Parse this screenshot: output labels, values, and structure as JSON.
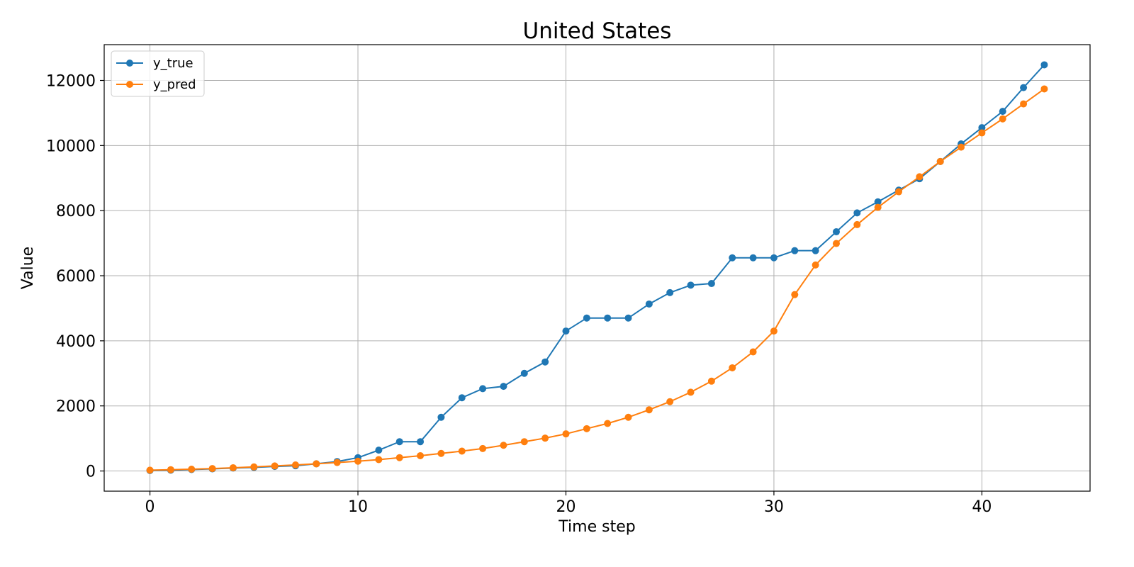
{
  "chart_data": {
    "type": "line",
    "title": "United States",
    "xlabel": "Time step",
    "ylabel": "Value",
    "xlim": [
      -2.2,
      45.2
    ],
    "ylim": [
      -620,
      13100
    ],
    "xticks": [
      0,
      10,
      20,
      30,
      40
    ],
    "yticks": [
      0,
      2000,
      4000,
      6000,
      8000,
      10000,
      12000
    ],
    "grid": true,
    "legend_position": "top-left",
    "x": [
      0,
      1,
      2,
      3,
      4,
      5,
      6,
      7,
      8,
      9,
      10,
      11,
      12,
      13,
      14,
      15,
      16,
      17,
      18,
      19,
      20,
      21,
      22,
      23,
      24,
      25,
      26,
      27,
      28,
      29,
      30,
      31,
      32,
      33,
      34,
      35,
      36,
      37,
      38,
      39,
      40,
      41,
      42,
      43
    ],
    "series": [
      {
        "name": "y_true",
        "color": "#1f77b4",
        "values": [
          15,
          25,
          45,
          65,
          90,
          110,
          140,
          160,
          220,
          290,
          410,
          640,
          900,
          900,
          1650,
          2250,
          2530,
          2600,
          3000,
          3350,
          4300,
          4700,
          4700,
          4700,
          5130,
          5480,
          5710,
          5760,
          6550,
          6550,
          6550,
          6770,
          6770,
          7350,
          7930,
          8270,
          8630,
          8980,
          9510,
          10050,
          10550,
          11050,
          11780,
          12480
        ]
      },
      {
        "name": "y_pred",
        "color": "#ff7f0e",
        "values": [
          25,
          40,
          55,
          75,
          100,
          125,
          155,
          185,
          220,
          260,
          300,
          350,
          410,
          470,
          540,
          610,
          690,
          790,
          900,
          1010,
          1140,
          1300,
          1460,
          1650,
          1880,
          2130,
          2420,
          2760,
          3170,
          3660,
          4300,
          5420,
          6330,
          6990,
          7570,
          8100,
          8580,
          9040,
          9510,
          9950,
          10390,
          10820,
          11280,
          11740
        ]
      }
    ]
  }
}
